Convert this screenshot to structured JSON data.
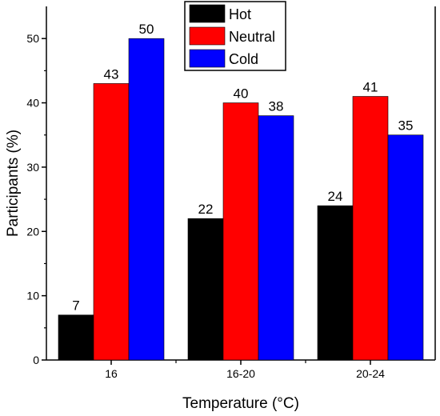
{
  "chart_data": {
    "type": "bar",
    "title": "",
    "xlabel": "Temperature (°C)",
    "ylabel": "Participants (%)",
    "categories": [
      "16",
      "16-20",
      "20-24"
    ],
    "ylim": [
      0,
      55
    ],
    "yticks": [
      0,
      10,
      20,
      30,
      40,
      50
    ],
    "grid": false,
    "legend_position": "top-center",
    "series": [
      {
        "name": "Hot",
        "color": "#000000",
        "values": [
          7,
          22,
          24
        ]
      },
      {
        "name": "Neutral",
        "color": "#ff0000",
        "values": [
          43,
          40,
          41
        ]
      },
      {
        "name": "Cold",
        "color": "#0000ff",
        "values": [
          50,
          38,
          35
        ]
      }
    ]
  }
}
